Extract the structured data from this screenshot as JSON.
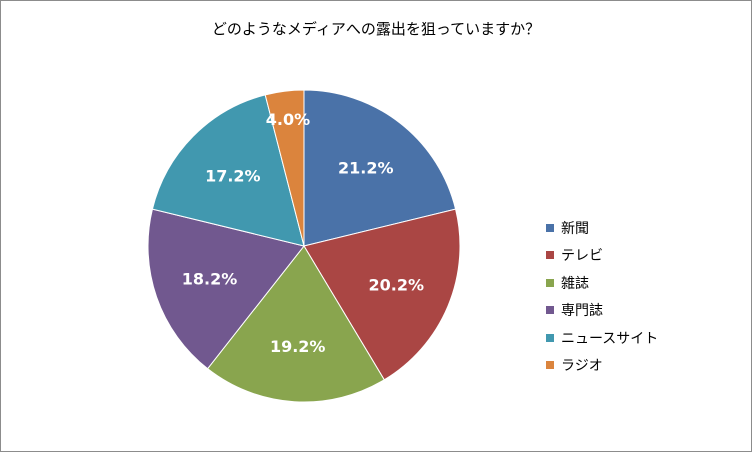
{
  "chart_data": {
    "type": "pie",
    "title": "どのようなメディアへの露出を狙っていますか？",
    "categories": [
      "新聞",
      "テレビ",
      "雑誌",
      "専門誌",
      "ニュースサイト",
      "ラジオ"
    ],
    "values": [
      21.2,
      20.2,
      19.2,
      18.2,
      17.2,
      4.0
    ],
    "labels": [
      "21.2%",
      "20.2%",
      "19.2%",
      "18.2%",
      "17.2%",
      "4.0%"
    ],
    "colors": [
      "#4a72a8",
      "#aa4644",
      "#89a54e",
      "#71588f",
      "#4198af",
      "#db843d"
    ],
    "legend_position": "right"
  }
}
